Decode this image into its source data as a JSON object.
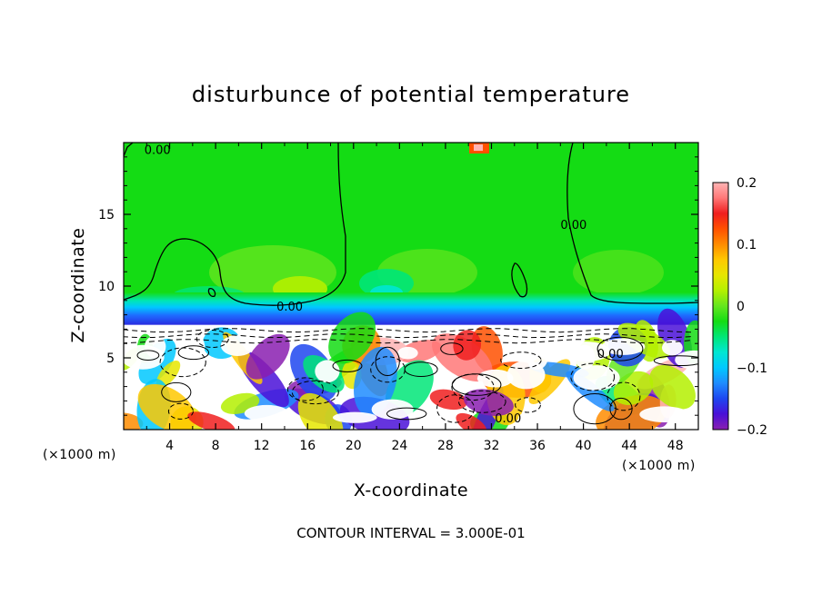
{
  "chart_data": {
    "type": "heatmap",
    "title": "disturbunce of potential temperature",
    "xlabel": "X-coordinate",
    "ylabel": "Z-coordinate",
    "x_unit": "(×1000 m)",
    "x_unit_right": "(×1000 m)",
    "footer": "CONTOUR INTERVAL = 3.000E-01",
    "xlim": [
      0,
      50
    ],
    "ylim": [
      0,
      20
    ],
    "x_ticks": [
      4,
      8,
      12,
      16,
      20,
      24,
      28,
      32,
      36,
      40,
      44,
      48
    ],
    "x_tick_labels": [
      "4",
      "8",
      "12",
      "16",
      "20",
      "24",
      "28",
      "32",
      "36",
      "40",
      "44",
      "48"
    ],
    "y_ticks": [
      5,
      10,
      15
    ],
    "y_tick_labels": [
      "5",
      "10",
      "15"
    ],
    "colorbar": {
      "range": [
        -0.2,
        0.2
      ],
      "tick_values": [
        0.2,
        0.1,
        0,
        -0.1,
        -0.2
      ],
      "tick_labels": [
        "0.2",
        "0.1",
        "0",
        "−0.1",
        "−0.2"
      ],
      "colors": [
        "#8a1fb0",
        "#4a10d8",
        "#1e46f0",
        "#1e8cff",
        "#00c8ff",
        "#00e6d2",
        "#00e678",
        "#14dc14",
        "#64e61e",
        "#b4f000",
        "#e6e600",
        "#ffc800",
        "#ff8c00",
        "#ff5000",
        "#f01e1e",
        "#ff7878",
        "#ffb4b4"
      ]
    },
    "contour_labels": [
      {
        "text": "0.00",
        "x": 1.8,
        "z": 19.2
      },
      {
        "text": "0.00",
        "x": 13.3,
        "z": 8.3
      },
      {
        "text": "0.00",
        "x": 38.0,
        "z": 14.0
      },
      {
        "text": "0.00",
        "x": 41.2,
        "z": 5.0
      },
      {
        "text": "0.00",
        "x": 32.3,
        "z": 0.5
      }
    ],
    "regions": [
      {
        "kind": "mixed-layer",
        "z_range": [
          0,
          7.3
        ],
        "description_value": "strong ±0.2 anomalies"
      },
      {
        "kind": "inversion-band",
        "z_range": [
          7.3,
          8.7
        ],
        "value": -0.08
      },
      {
        "kind": "free-atmosphere",
        "z_range": [
          8.7,
          20
        ],
        "value": 0.0
      }
    ]
  }
}
